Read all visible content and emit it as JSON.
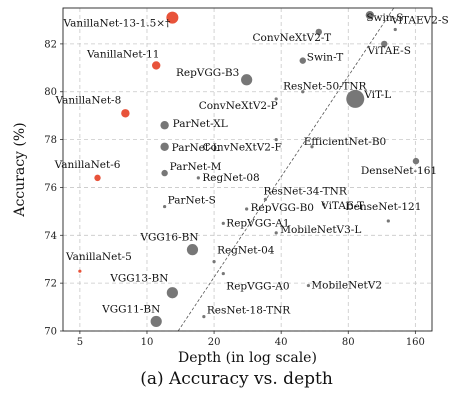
{
  "caption": "(a) Accuracy vs. depth",
  "chart_data": {
    "type": "scatter",
    "xlabel": "Depth (in log scale)",
    "ylabel": "Accuracy (%)",
    "x_scale": "log",
    "xlim": [
      4.2,
      190
    ],
    "ylim": [
      70,
      83.5
    ],
    "x_ticks": [
      5,
      10,
      20,
      40,
      80,
      160
    ],
    "y_ticks": [
      70,
      72,
      74,
      76,
      78,
      80,
      82
    ],
    "grid": true,
    "trend_line": {
      "from": [
        13.8,
        70
      ],
      "to": [
        128,
        83.5
      ],
      "style": "dashed"
    },
    "colors": {
      "vanillanet": "#e8533a",
      "other": "#777777",
      "grid": "#c8c8c8"
    },
    "points": [
      {
        "label": "VanillaNet-13-1.5×†",
        "x": 13,
        "y": 83.1,
        "size": "large",
        "group": "vanillanet"
      },
      {
        "label": "VanillaNet-11",
        "x": 11,
        "y": 81.1,
        "size": "small",
        "group": "vanillanet"
      },
      {
        "label": "VanillaNet-8",
        "x": 8,
        "y": 79.1,
        "size": "small",
        "group": "vanillanet"
      },
      {
        "label": "VanillaNet-6",
        "x": 6,
        "y": 76.4,
        "size": "tiny",
        "group": "vanillanet"
      },
      {
        "label": "VanillaNet-5",
        "x": 5,
        "y": 72.5,
        "size": "dot",
        "group": "vanillanet"
      },
      {
        "label": "Swin-S",
        "x": 100,
        "y": 83.2,
        "size": "small",
        "group": "other"
      },
      {
        "label": "ViTAEV2-S",
        "x": 130,
        "y": 82.6,
        "size": "dot",
        "group": "other"
      },
      {
        "label": "ViTAE-S",
        "x": 116,
        "y": 82,
        "size": "tiny",
        "group": "other"
      },
      {
        "label": "ConvNeXtV2-T",
        "x": 59,
        "y": 82.5,
        "size": "tiny",
        "group": "other"
      },
      {
        "label": "Swin-T",
        "x": 50,
        "y": 81.3,
        "size": "tiny",
        "group": "other"
      },
      {
        "label": "RepVGG-B3",
        "x": 28,
        "y": 80.5,
        "size": "medium",
        "group": "other"
      },
      {
        "label": "ResNet-50-TNR",
        "x": 50,
        "y": 80.0,
        "size": "dot",
        "group": "other"
      },
      {
        "label": "ViT-L",
        "x": 86,
        "y": 79.7,
        "size": "xlarge",
        "group": "other"
      },
      {
        "label": "ConvNeXtV2-P",
        "x": 38,
        "y": 79.7,
        "size": "dot",
        "group": "other"
      },
      {
        "label": "ParNet-XL",
        "x": 12,
        "y": 78.6,
        "size": "small",
        "group": "other"
      },
      {
        "label": "ParNet-L",
        "x": 12,
        "y": 77.7,
        "size": "small",
        "group": "other"
      },
      {
        "label": "EfficientNet-B0",
        "x": 55,
        "y": 77.7,
        "size": "dot",
        "group": "other"
      },
      {
        "label": "ConvNeXtV2-F",
        "x": 38,
        "y": 78.0,
        "size": "dot",
        "group": "other"
      },
      {
        "label": "ParNet-M",
        "x": 12,
        "y": 76.6,
        "size": "tiny",
        "group": "other"
      },
      {
        "label": "RegNet-08",
        "x": 17,
        "y": 76.4,
        "size": "dot",
        "group": "other"
      },
      {
        "label": "DenseNet-161",
        "x": 161,
        "y": 77.1,
        "size": "tiny",
        "group": "other"
      },
      {
        "label": "ResNet-34-TNR",
        "x": 34,
        "y": 75.5,
        "size": "dot",
        "group": "other"
      },
      {
        "label": "RepVGG-B0",
        "x": 28,
        "y": 75.1,
        "size": "dot",
        "group": "other"
      },
      {
        "label": "ViTAE-T",
        "x": 62,
        "y": 75.3,
        "size": "dot",
        "group": "other"
      },
      {
        "label": "ParNet-S",
        "x": 12,
        "y": 75.2,
        "size": "dot",
        "group": "other"
      },
      {
        "label": "DenseNet-121",
        "x": 121,
        "y": 74.6,
        "size": "dot",
        "group": "other"
      },
      {
        "label": "RepVGG-A1",
        "x": 22,
        "y": 74.5,
        "size": "dot",
        "group": "other"
      },
      {
        "label": "MobileNetV3-L",
        "x": 38,
        "y": 74.1,
        "size": "dot",
        "group": "other"
      },
      {
        "label": "VGG16-BN",
        "x": 16,
        "y": 73.4,
        "size": "medium",
        "group": "other"
      },
      {
        "label": "RegNet-04",
        "x": 20,
        "y": 72.9,
        "size": "dot",
        "group": "other"
      },
      {
        "label": "VGG13-BN",
        "x": 13,
        "y": 71.6,
        "size": "medium",
        "group": "other"
      },
      {
        "label": "RepVGG-A0",
        "x": 22,
        "y": 72.4,
        "size": "dot",
        "group": "other"
      },
      {
        "label": "MobileNetV2",
        "x": 53,
        "y": 71.9,
        "size": "dot",
        "group": "other"
      },
      {
        "label": "VGG11-BN",
        "x": 11,
        "y": 70.4,
        "size": "medium",
        "group": "other"
      },
      {
        "label": "ResNet-18-TNR",
        "x": 18,
        "y": 70.6,
        "size": "dot",
        "group": "other"
      }
    ]
  }
}
